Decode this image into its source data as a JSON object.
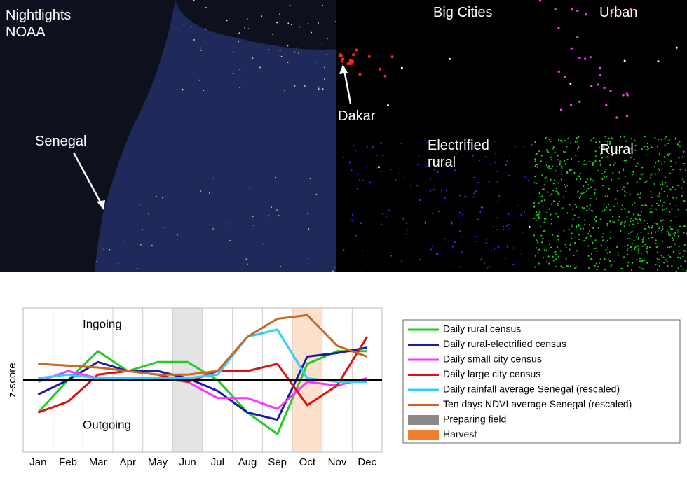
{
  "map_panel": {
    "source_label": "Nightlights NOAA",
    "country_label": "Senegal",
    "big_cities_label": "Big Cities",
    "urban_label": "Urban",
    "dakar_label": "Dakar",
    "electrified_rural_label": "Electrified rural",
    "rural_label": "Rural"
  },
  "chart_data": {
    "type": "line",
    "y_label": "z-score",
    "annotations": [
      "Ingoing",
      "Outgoing"
    ],
    "categories": [
      "Jan",
      "Feb",
      "Mar",
      "Apr",
      "May",
      "Jun",
      "Jul",
      "Aug",
      "Sep",
      "Oct",
      "Nov",
      "Dec"
    ],
    "ylim": [
      -2,
      2
    ],
    "yticks": [],
    "grid": true,
    "series": [
      {
        "name": "Daily rural census",
        "color": "#22cc22",
        "values": [
          -0.9,
          0,
          0.8,
          0.25,
          0.5,
          0.5,
          0,
          -0.9,
          -1.5,
          0.45,
          0.8,
          0.8
        ]
      },
      {
        "name": "Daily rural-electrified census",
        "color": "#1a1aa8",
        "values": [
          -0.4,
          0,
          0.5,
          0.25,
          0.25,
          0.05,
          -0.3,
          -0.9,
          -1.1,
          0.65,
          0.75,
          0.9
        ]
      },
      {
        "name": "Daily small city census",
        "color": "#ff33ff",
        "values": [
          -0.05,
          0.25,
          0.05,
          0.05,
          0.05,
          -0.05,
          -0.5,
          -0.5,
          -0.8,
          -0.05,
          -0.15,
          0.05
        ]
      },
      {
        "name": "Daily large city census",
        "color": "#dd1111",
        "values": [
          -0.9,
          -0.6,
          0.15,
          0.25,
          0.15,
          -0.05,
          0.25,
          0.25,
          0.45,
          -0.7,
          -0.15,
          1.2
        ]
      },
      {
        "name": "Daily rainfall average Senegal (rescaled)",
        "color": "#33ccff",
        "values": [
          0.05,
          0.15,
          0.05,
          0.05,
          0.05,
          0.05,
          0.15,
          1.2,
          1.4,
          0.05,
          -0.05,
          -0.05
        ]
      },
      {
        "name": "Ten days NDVI average Senegal (rescaled)",
        "color": "#cc6622",
        "values": [
          0.45,
          0.4,
          0.35,
          0.25,
          0.15,
          0.15,
          0.25,
          1.2,
          1.7,
          1.8,
          0.95,
          0.65
        ]
      }
    ],
    "shaded": [
      {
        "name": "Preparing field",
        "category": "Jun",
        "color": "#dddddd",
        "legend_color": "#888888"
      },
      {
        "name": "Harvest",
        "category": "Oct",
        "color": "#fbd9c0",
        "legend_color": "#f08030"
      }
    ]
  }
}
